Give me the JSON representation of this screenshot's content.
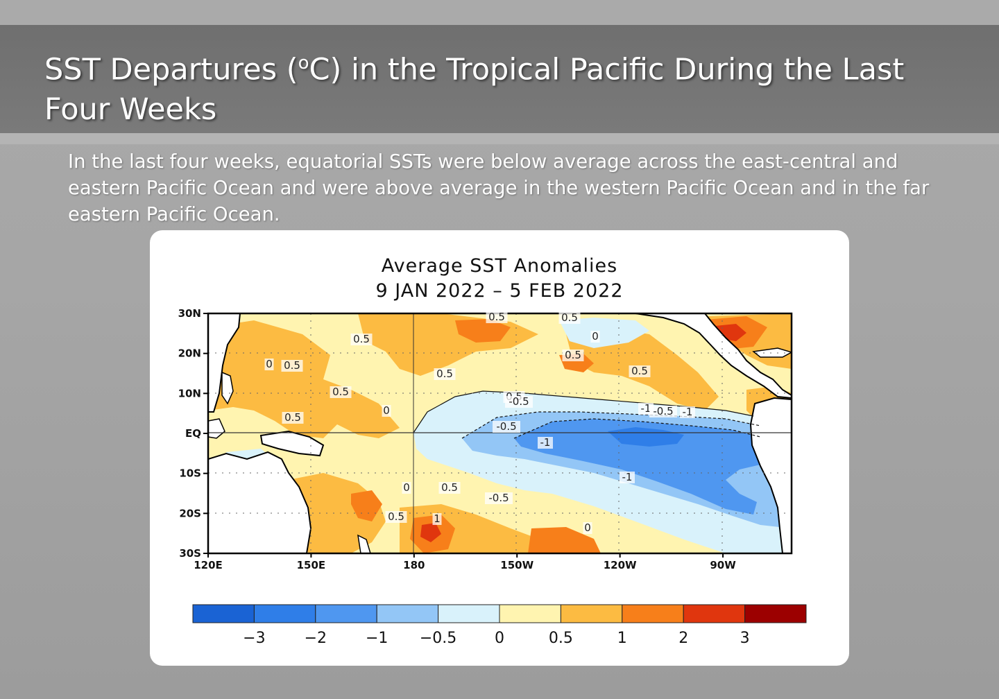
{
  "slide": {
    "title_main": "SST Departures (",
    "title_sup": "o",
    "title_rest": "C) in the Tropical Pacific During the Last Four Weeks",
    "summary": "In the last four weeks, equatorial SSTs were below average across the east-central and eastern Pacific Ocean and were above average in the western Pacific Ocean and in the far eastern Pacific Ocean."
  },
  "map": {
    "title_line1": "Average SST Anomalies",
    "title_line2": "9 JAN 2022 – 5 FEB 2022",
    "lat_ticks": [
      "30N",
      "20N",
      "10N",
      "EQ",
      "10S",
      "20S",
      "30S"
    ],
    "lon_ticks": [
      "120E",
      "150E",
      "180",
      "150W",
      "120W",
      "90W"
    ],
    "contour_labels": [
      "0.5",
      "0.5",
      "0.5",
      "0.5",
      "0.5",
      "0.5",
      "0.5",
      "0.5",
      "0.5",
      "0.5",
      "0",
      "0",
      "0",
      "0",
      "0",
      "-0.5",
      "-1",
      "-1",
      "-1",
      "-0.5",
      "-0.5",
      "1",
      "0.5",
      "0.5",
      "-1",
      "-0.5"
    ],
    "colorbar": {
      "colors": [
        "#1a63d4",
        "#2f7ee8",
        "#4f97f0",
        "#93c6f6",
        "#d9f2fb",
        "#fff4b0",
        "#fcbb42",
        "#f77f1a",
        "#e0360e",
        "#9c0000"
      ],
      "labels": [
        "−3",
        "−2",
        "−1",
        "−0.5",
        "0",
        "0.5",
        "1",
        "2",
        "3"
      ]
    },
    "palette": {
      "land": "#ffffff",
      "neutral": "#fff4b0",
      "warm": "#fcbb42",
      "hot": "#f77f1a",
      "very_hot": "#e0360e",
      "cool": "#d9f2fb",
      "cold": "#93c6f6",
      "colder": "#4f97f0",
      "coldest": "#2f7ee8"
    }
  }
}
